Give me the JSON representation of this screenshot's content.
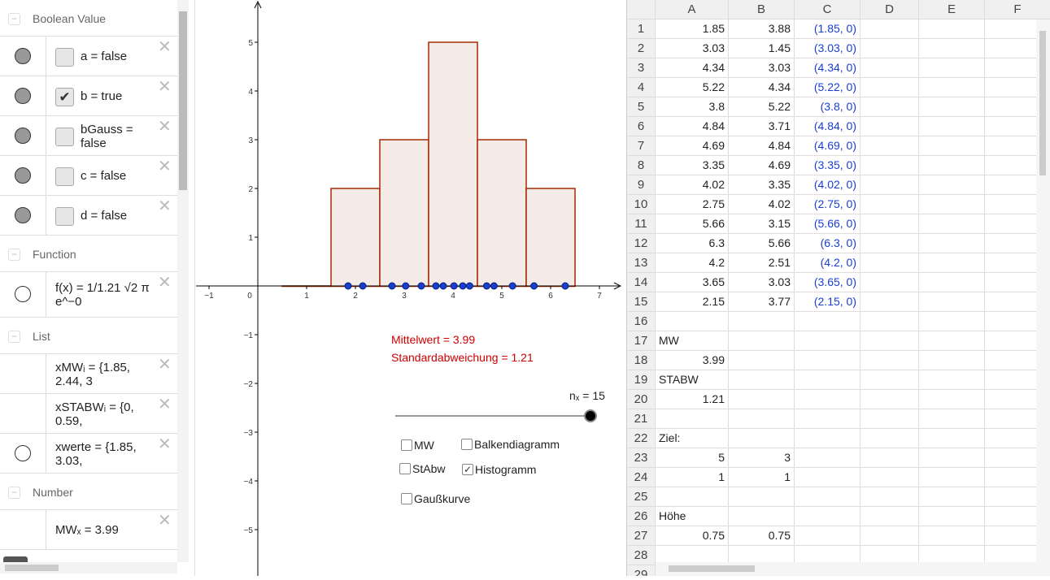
{
  "algebra": {
    "sections": [
      {
        "title": "Boolean Value",
        "items": [
          {
            "text": "a = false",
            "checked": false
          },
          {
            "text": "b = true",
            "checked": true
          },
          {
            "text": "bGauss = false",
            "checked": false
          },
          {
            "text": "c = false",
            "checked": false
          },
          {
            "text": "d = false",
            "checked": false
          }
        ]
      },
      {
        "title": "Function",
        "items": [
          {
            "text": "f(x) = 1/1.21 √2 π e^−0"
          }
        ]
      },
      {
        "title": "List",
        "items": [
          {
            "text": "xMWᵢ = {1.85, 2.44, 3"
          },
          {
            "text": "xSTABWᵢ = {0, 0.59,"
          },
          {
            "text": "xwerte = {1.85, 3.03,"
          }
        ]
      },
      {
        "title": "Number",
        "items": [
          {
            "text": "MWₓ = 3.99"
          }
        ]
      }
    ]
  },
  "graph": {
    "mean_text": "Mittelwert = 3.99",
    "sd_text": "Standardabweichung = 1.21",
    "slider_label": "nₓ = 15",
    "slider_value": 15,
    "slider_fraction": 1.0,
    "checkboxes": [
      {
        "label": "MW",
        "checked": false
      },
      {
        "label": "Balkendiagramm",
        "checked": false
      },
      {
        "label": "StAbw",
        "checked": false
      },
      {
        "label": "Histogramm",
        "checked": true
      },
      {
        "label": "Gaußkurve",
        "checked": false
      }
    ],
    "colors": {
      "bar_stroke": "#a52a00",
      "bar_fill": "#f5ebe6",
      "point": "#1a3fcc",
      "text_red": "#cc0000"
    }
  },
  "chart_data": {
    "type": "bar",
    "xlim": [
      -1.3,
      7.5
    ],
    "ylim": [
      -5.9,
      5.9
    ],
    "x_ticks": [
      -1,
      0,
      1,
      2,
      3,
      4,
      5,
      6,
      7
    ],
    "y_ticks": [
      -5,
      -4,
      -3,
      -2,
      -1,
      1,
      2,
      3,
      4,
      5
    ],
    "histogram": {
      "bins": [
        [
          0.5,
          1.5
        ],
        [
          1.5,
          2.5
        ],
        [
          2.5,
          3.5
        ],
        [
          3.5,
          4.5
        ],
        [
          4.5,
          5.5
        ],
        [
          5.5,
          6.5
        ]
      ],
      "heights": [
        0,
        2,
        3,
        5,
        3,
        2
      ]
    },
    "points_x": [
      1.85,
      3.03,
      4.34,
      5.22,
      3.8,
      4.84,
      4.69,
      3.35,
      4.02,
      2.75,
      5.66,
      6.3,
      4.2,
      3.65,
      2.15
    ]
  },
  "spreadsheet": {
    "columns": [
      "A",
      "B",
      "C",
      "D",
      "E",
      "F"
    ],
    "rows": [
      [
        "1.85",
        "3.88",
        "(1.85, 0)"
      ],
      [
        "3.03",
        "1.45",
        "(3.03, 0)"
      ],
      [
        "4.34",
        "3.03",
        "(4.34, 0)"
      ],
      [
        "5.22",
        "4.34",
        "(5.22, 0)"
      ],
      [
        "3.8",
        "5.22",
        "(3.8, 0)"
      ],
      [
        "4.84",
        "3.71",
        "(4.84, 0)"
      ],
      [
        "4.69",
        "4.84",
        "(4.69, 0)"
      ],
      [
        "3.35",
        "4.69",
        "(3.35, 0)"
      ],
      [
        "4.02",
        "3.35",
        "(4.02, 0)"
      ],
      [
        "2.75",
        "4.02",
        "(2.75, 0)"
      ],
      [
        "5.66",
        "3.15",
        "(5.66, 0)"
      ],
      [
        "6.3",
        "5.66",
        "(6.3, 0)"
      ],
      [
        "4.2",
        "2.51",
        "(4.2, 0)"
      ],
      [
        "3.65",
        "3.03",
        "(3.65, 0)"
      ],
      [
        "2.15",
        "3.77",
        "(2.15, 0)"
      ],
      [],
      [
        "MW"
      ],
      [
        "3.99"
      ],
      [
        "STABW"
      ],
      [
        "1.21"
      ],
      [],
      [
        "Ziel:"
      ],
      [
        "5",
        "3"
      ],
      [
        "1",
        "1"
      ],
      [],
      [
        "Höhe"
      ],
      [
        "0.75",
        "0.75"
      ],
      [],
      []
    ],
    "text_rows": [
      17,
      19,
      22,
      26
    ]
  }
}
